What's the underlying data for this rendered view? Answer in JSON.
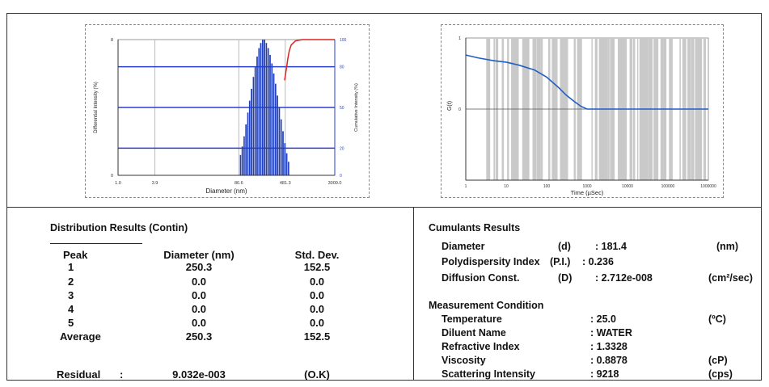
{
  "chart_data": [
    {
      "type": "bar",
      "xlabel": "Diameter (nm)",
      "ylabel": "Differential Intensity (%)",
      "ylabel_right": "Cumulative Intensity (%)",
      "x_ticks": [
        "1.0",
        "3.9",
        "86.6",
        "481.3",
        "3000.0"
      ],
      "y_ticks_left": [
        "0",
        "8"
      ],
      "y_ticks_right": [
        "0",
        "20",
        "50",
        "80",
        "100"
      ],
      "x_scale": "log",
      "xlim": [
        1.0,
        3000.0
      ],
      "ylim_left": [
        0,
        8
      ],
      "ylim_right": [
        0,
        100
      ],
      "grid": true,
      "series": [
        {
          "diameters": [
            90,
            96,
            103,
            110,
            118,
            126,
            135,
            145,
            155,
            166,
            178,
            190,
            204,
            218,
            234,
            250,
            268,
            287,
            307,
            329,
            352,
            377,
            404,
            432,
            463,
            496,
            531
          ],
          "values": [
            1.2,
            1.7,
            2.3,
            3.0,
            3.7,
            4.4,
            5.1,
            5.8,
            6.4,
            7.0,
            7.5,
            7.8,
            8.0,
            8.0,
            7.8,
            7.5,
            7.1,
            6.6,
            6.0,
            5.4,
            4.7,
            4.0,
            3.3,
            2.6,
            1.9,
            1.3,
            0.8
          ]
        },
        {
          "type": "line",
          "diameters": [
            470,
            500,
            530,
            560,
            600,
            700,
            900,
            1200,
            3000
          ],
          "values": [
            70,
            78,
            86,
            92,
            96,
            99,
            100,
            100,
            100
          ]
        }
      ]
    },
    {
      "type": "line",
      "xlabel": "Time (µSec)",
      "ylabel": "G(t)",
      "x_ticks": [
        "1",
        "10",
        "100",
        "1000",
        "10000",
        "100000",
        "1000000"
      ],
      "y_ticks": [
        "1",
        "0"
      ],
      "x_scale": "log",
      "xlim": [
        1,
        1000000
      ],
      "ylim": [
        -1,
        1
      ],
      "grid": true,
      "series": [
        {
          "x": [
            1,
            2,
            5,
            10,
            20,
            50,
            100,
            200,
            300,
            500,
            700,
            1000,
            2000,
            5000,
            10000,
            100000,
            1000000
          ],
          "values": [
            0.76,
            0.72,
            0.68,
            0.66,
            0.62,
            0.55,
            0.45,
            0.3,
            0.2,
            0.1,
            0.04,
            0.0,
            0.0,
            0.0,
            0.0,
            0.0,
            0.0
          ]
        }
      ]
    }
  ],
  "distribution": {
    "title": "Distribution Results (Contin)",
    "headers": [
      "Peak",
      "Diameter (nm)",
      "Std. Dev."
    ],
    "rows": [
      {
        "peak": "1",
        "diameter": "250.3",
        "std": "152.5"
      },
      {
        "peak": "2",
        "diameter": "0.0",
        "std": "0.0"
      },
      {
        "peak": "3",
        "diameter": "0.0",
        "std": "0.0"
      },
      {
        "peak": "4",
        "diameter": "0.0",
        "std": "0.0"
      },
      {
        "peak": "5",
        "diameter": "0.0",
        "std": "0.0"
      },
      {
        "peak": "Average",
        "diameter": "250.3",
        "std": "152.5"
      }
    ],
    "residual_label": "Residual",
    "residual_colon": ":",
    "residual_value": "9.032e-003",
    "residual_status": "(O.K)"
  },
  "cumulants": {
    "title": "Cumulants Results",
    "rows": [
      {
        "label": "Diameter",
        "sym": "(d)",
        "value": ": 181.4",
        "unit": "(nm)"
      },
      {
        "label": "Polydispersity Index",
        "sym": "(P.I.)",
        "value": ": 0.236",
        "unit": ""
      },
      {
        "label": "Diffusion Const.",
        "sym": "(D)",
        "value": ": 2.712e-008",
        "unit": "(cm²/sec)"
      }
    ]
  },
  "measurement": {
    "title": "Measurement Condition",
    "rows": [
      {
        "label": "Temperature",
        "value": ": 25.0",
        "unit": "(ºC)"
      },
      {
        "label": "Diluent Name",
        "value": ": WATER",
        "unit": ""
      },
      {
        "label": "Refractive Index",
        "value": ": 1.3328",
        "unit": ""
      },
      {
        "label": "Viscosity",
        "value": ": 0.8878",
        "unit": "(cP)"
      },
      {
        "label": "Scattering Intensity",
        "value": ": 9218",
        "unit": "(cps)"
      }
    ]
  }
}
